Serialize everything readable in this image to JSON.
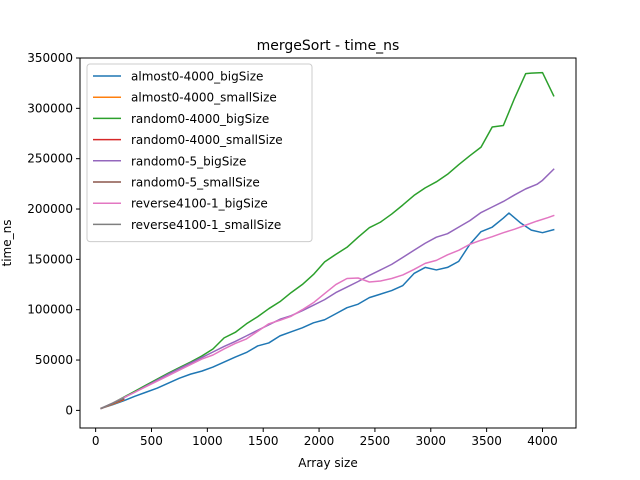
{
  "chart_data": {
    "type": "line",
    "title": "mergeSort - time_ns",
    "xlabel": "Array size",
    "ylabel": "time_ns",
    "xlim": [
      -140,
      4300
    ],
    "ylim": [
      -17500,
      350000
    ],
    "xticks": [
      0,
      500,
      1000,
      1500,
      2000,
      2500,
      3000,
      3500,
      4000
    ],
    "yticks": [
      0,
      50000,
      100000,
      150000,
      200000,
      250000,
      300000,
      350000
    ],
    "grid": false,
    "legend_position": "top-left",
    "series": [
      {
        "name": "almost0-4000_bigSize",
        "color": "#1f77b4",
        "x": [
          50,
          150,
          250,
          350,
          450,
          550,
          650,
          750,
          850,
          950,
          1050,
          1150,
          1250,
          1350,
          1450,
          1550,
          1650,
          1750,
          1850,
          1950,
          2050,
          2150,
          2250,
          2350,
          2450,
          2550,
          2650,
          2750,
          2850,
          2950,
          3050,
          3150,
          3250,
          3350,
          3450,
          3550,
          3650,
          3700,
          3800,
          3900,
          4000,
          4100
        ],
        "y": [
          2000,
          5500,
          9500,
          14000,
          18000,
          22000,
          27000,
          32000,
          36000,
          39000,
          43000,
          48000,
          53000,
          57500,
          64000,
          67000,
          74000,
          78000,
          82000,
          87000,
          90000,
          96000,
          102000,
          105500,
          112000,
          115500,
          119000,
          124000,
          136000,
          142000,
          139500,
          142000,
          148000,
          165000,
          177500,
          182000,
          191000,
          196000,
          186500,
          179000,
          176500,
          179500
        ]
      },
      {
        "name": "almost0-4000_smallSize",
        "color": "#ff7f0e",
        "x": [
          50,
          150,
          250
        ],
        "y": [
          2000,
          6000,
          10500
        ]
      },
      {
        "name": "random0-4000_bigSize",
        "color": "#2ca02c",
        "x": [
          50,
          150,
          250,
          350,
          450,
          550,
          650,
          750,
          850,
          950,
          1050,
          1150,
          1250,
          1350,
          1450,
          1550,
          1650,
          1750,
          1850,
          1950,
          2050,
          2150,
          2250,
          2350,
          2450,
          2550,
          2650,
          2750,
          2850,
          2950,
          3050,
          3150,
          3250,
          3350,
          3450,
          3550,
          3650,
          3750,
          3850,
          3900,
          4000,
          4100
        ],
        "y": [
          2000,
          7000,
          13000,
          19000,
          25000,
          31000,
          37000,
          42500,
          48000,
          54000,
          61000,
          72000,
          77500,
          86000,
          93000,
          101000,
          108000,
          117000,
          125000,
          135000,
          147500,
          155000,
          162000,
          172000,
          181500,
          187000,
          195000,
          204000,
          213500,
          221000,
          227000,
          234500,
          244000,
          253000,
          261500,
          281500,
          283000,
          310000,
          334500,
          335000,
          335500,
          312500
        ]
      },
      {
        "name": "random0-4000_smallSize",
        "color": "#d62728",
        "x": [
          50,
          150,
          250
        ],
        "y": [
          2000,
          6500,
          11000
        ]
      },
      {
        "name": "random0-5_bigSize",
        "color": "#9467bd",
        "x": [
          50,
          150,
          250,
          350,
          450,
          550,
          650,
          750,
          850,
          950,
          1050,
          1150,
          1250,
          1350,
          1450,
          1550,
          1650,
          1750,
          1850,
          1950,
          2050,
          2150,
          2250,
          2350,
          2450,
          2550,
          2650,
          2750,
          2850,
          2950,
          3050,
          3150,
          3250,
          3350,
          3450,
          3550,
          3650,
          3750,
          3850,
          3950,
          4000,
          4100
        ],
        "y": [
          2000,
          7000,
          12500,
          18000,
          24000,
          30000,
          36000,
          41500,
          47000,
          52500,
          58000,
          63500,
          68500,
          74000,
          79500,
          85000,
          90500,
          94000,
          99000,
          104500,
          110000,
          117000,
          122500,
          128000,
          134000,
          139500,
          145000,
          152000,
          159000,
          166000,
          172000,
          175500,
          182000,
          188500,
          196500,
          202000,
          207500,
          214000,
          220000,
          224500,
          228500,
          239500
        ]
      },
      {
        "name": "random0-5_smallSize",
        "color": "#8c564b",
        "x": [
          50,
          150,
          250
        ],
        "y": [
          2000,
          6500,
          11500
        ]
      },
      {
        "name": "reverse4100-1_bigSize",
        "color": "#e377c2",
        "x": [
          50,
          150,
          250,
          350,
          450,
          550,
          650,
          750,
          850,
          950,
          1050,
          1150,
          1250,
          1350,
          1450,
          1550,
          1650,
          1750,
          1850,
          1950,
          2050,
          2150,
          2250,
          2350,
          2450,
          2550,
          2650,
          2750,
          2850,
          2950,
          3050,
          3150,
          3250,
          3350,
          3450,
          3550,
          3650,
          3750,
          3850,
          3950,
          4050,
          4100
        ],
        "y": [
          2000,
          7000,
          12500,
          18000,
          23500,
          29000,
          34500,
          40000,
          45500,
          51000,
          55000,
          61000,
          66500,
          71000,
          78500,
          86000,
          89500,
          93500,
          100000,
          107000,
          116000,
          125000,
          131000,
          131500,
          127500,
          128500,
          131000,
          134500,
          140000,
          146000,
          149000,
          154500,
          159000,
          165000,
          169000,
          172500,
          176500,
          180000,
          184000,
          188000,
          191500,
          193500
        ]
      },
      {
        "name": "reverse4100-1_smallSize",
        "color": "#7f7f7f",
        "x": [
          50,
          150,
          250
        ],
        "y": [
          2000,
          7000,
          12000
        ]
      }
    ]
  }
}
